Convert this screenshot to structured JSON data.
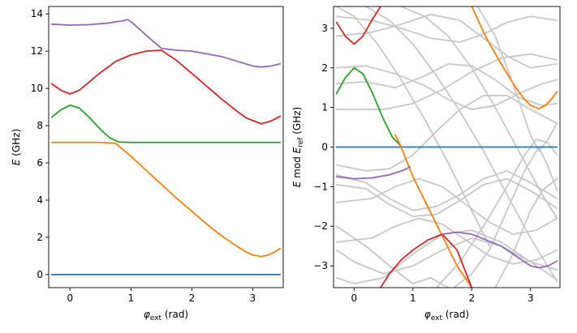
{
  "chart_data": [
    {
      "type": "line",
      "title": "",
      "xlabel_symbol": "φ",
      "xlabel_sub": "ext",
      "xlabel_unit": "(rad)",
      "ylabel_symbol": "E",
      "ylabel_unit": "(GHz)",
      "xlim": [
        -0.35,
        3.5
      ],
      "ylim": [
        -0.7,
        14.4
      ],
      "xticks": [
        0,
        1,
        2,
        3
      ],
      "yticks": [
        0,
        2,
        4,
        6,
        8,
        10,
        12,
        14
      ],
      "grid": false,
      "series": [
        {
          "color": "#1f77b4",
          "x": [
            -0.3,
            3.45
          ],
          "y": [
            0.0,
            0.0
          ]
        },
        {
          "color": "#ff7f0e",
          "x": [
            -0.3,
            0.0,
            0.5,
            0.75,
            1.0,
            1.25,
            1.5,
            1.75,
            2.0,
            2.25,
            2.5,
            2.75,
            2.9,
            3.0,
            3.14,
            3.25,
            3.35,
            3.45
          ],
          "y": [
            7.1,
            7.1,
            7.1,
            7.05,
            6.35,
            5.6,
            4.85,
            4.1,
            3.4,
            2.7,
            2.05,
            1.5,
            1.2,
            1.05,
            0.97,
            1.05,
            1.2,
            1.4
          ]
        },
        {
          "color": "#2ca02c",
          "x": [
            -0.3,
            -0.15,
            0.0,
            0.15,
            0.3,
            0.5,
            0.65,
            0.8,
            1.0,
            1.5,
            2.0,
            2.5,
            3.0,
            3.45
          ],
          "y": [
            8.45,
            8.85,
            9.1,
            8.95,
            8.5,
            7.8,
            7.35,
            7.12,
            7.1,
            7.1,
            7.1,
            7.1,
            7.1,
            7.1
          ]
        },
        {
          "color": "#d62728",
          "x": [
            -0.3,
            -0.15,
            0.0,
            0.15,
            0.3,
            0.5,
            0.75,
            1.0,
            1.25,
            1.5,
            1.75,
            2.0,
            2.25,
            2.5,
            2.75,
            2.9,
            3.14,
            3.3,
            3.45
          ],
          "y": [
            10.25,
            9.9,
            9.7,
            9.9,
            10.3,
            10.85,
            11.45,
            11.8,
            12.0,
            12.05,
            11.5,
            10.8,
            10.1,
            9.4,
            8.75,
            8.4,
            8.1,
            8.25,
            8.5
          ]
        },
        {
          "color": "#9467bd",
          "x": [
            -0.3,
            0.0,
            0.3,
            0.6,
            0.85,
            0.95,
            1.05,
            1.25,
            1.5,
            1.75,
            2.0,
            2.5,
            3.0,
            3.14,
            3.3,
            3.45
          ],
          "y": [
            13.45,
            13.4,
            13.42,
            13.5,
            13.62,
            13.7,
            13.45,
            12.85,
            12.15,
            12.05,
            12.0,
            11.7,
            11.2,
            11.15,
            11.2,
            11.32
          ]
        }
      ]
    },
    {
      "type": "line",
      "title": "",
      "xlabel_symbol": "φ",
      "xlabel_sub": "ext",
      "xlabel_unit": "(rad)",
      "ylabel_prefix": "E",
      "ylabel_mod": "mod",
      "ylabel_symbol": "E",
      "ylabel_sub": "ref",
      "ylabel_unit": "(GHz)",
      "xlim": [
        -0.35,
        3.5
      ],
      "ylim": [
        -3.55,
        3.55
      ],
      "xticks": [
        0,
        1,
        2,
        3
      ],
      "yticks": [
        -3,
        -2,
        -1,
        0,
        1,
        2,
        3
      ],
      "yticklabels": [
        "−3",
        "−2",
        "−1",
        "0",
        "1",
        "2",
        "3"
      ],
      "grid": false,
      "background_lines_color": "#c8c8c8",
      "background_lines": [
        {
          "x": [
            -0.3,
            0.2,
            0.6,
            1.0,
            1.4,
            1.8,
            2.2,
            2.6,
            3.0,
            3.45
          ],
          "y": [
            -0.7,
            -0.9,
            -1.3,
            -1.6,
            -1.5,
            -1.2,
            -0.8,
            -0.6,
            -0.9,
            -1.3
          ]
        },
        {
          "x": [
            -0.3,
            0.2,
            0.6,
            1.0,
            1.4,
            1.8,
            2.2,
            2.6,
            3.0,
            3.45
          ],
          "y": [
            -0.95,
            -1.05,
            -1.45,
            -1.75,
            -1.7,
            -1.35,
            -0.95,
            -0.8,
            -1.1,
            -1.55
          ]
        },
        {
          "x": [
            -0.3,
            0.3,
            0.7,
            1.1,
            1.5,
            1.9,
            2.3,
            2.7,
            3.1,
            3.45
          ],
          "y": [
            -1.4,
            -1.3,
            -1.0,
            -0.8,
            -1.0,
            -1.45,
            -1.9,
            -2.2,
            -2.1,
            -1.8
          ]
        },
        {
          "x": [
            -0.3,
            0.3,
            0.7,
            1.1,
            1.5,
            1.9,
            2.3,
            2.7,
            3.1,
            3.45
          ],
          "y": [
            -2.4,
            -2.3,
            -2.0,
            -1.8,
            -1.95,
            -2.35,
            -2.75,
            -2.95,
            -2.85,
            -2.6
          ]
        },
        {
          "x": [
            -0.3,
            0.0,
            0.5,
            1.0,
            1.5,
            2.0,
            2.5,
            3.0,
            3.45
          ],
          "y": [
            -2.6,
            -2.9,
            -3.2,
            -3.0,
            -2.6,
            -2.3,
            -2.5,
            -2.9,
            -3.1
          ]
        },
        {
          "x": [
            -0.3,
            0.0,
            0.5,
            1.0,
            1.5,
            2.0,
            2.5,
            3.0,
            3.45
          ],
          "y": [
            -3.3,
            -3.45,
            -3.3,
            -2.7,
            -2.2,
            -2.1,
            -2.4,
            -2.9,
            -3.35
          ]
        },
        {
          "x": [
            -0.3,
            0.2,
            0.7,
            1.2,
            1.6,
            2.0,
            2.4,
            2.8,
            3.2,
            3.45
          ],
          "y": [
            2.0,
            2.05,
            1.85,
            1.55,
            1.2,
            0.95,
            1.05,
            1.35,
            1.6,
            1.7
          ]
        },
        {
          "x": [
            -0.3,
            0.2,
            0.7,
            1.2,
            1.6,
            2.0,
            2.4,
            2.8,
            3.2,
            3.45
          ],
          "y": [
            1.6,
            1.65,
            1.5,
            1.8,
            2.1,
            2.05,
            1.7,
            1.25,
            1.05,
            1.1
          ]
        },
        {
          "x": [
            -0.3,
            0.3,
            0.8,
            1.3,
            1.8,
            2.2,
            2.6,
            3.0,
            3.45
          ],
          "y": [
            2.8,
            2.9,
            3.1,
            3.35,
            3.2,
            2.75,
            2.3,
            2.0,
            2.1
          ]
        },
        {
          "x": [
            -0.3,
            0.3,
            0.8,
            1.3,
            1.8,
            2.2,
            2.6,
            3.0,
            3.45
          ],
          "y": [
            3.3,
            3.2,
            3.0,
            2.75,
            2.65,
            2.85,
            3.15,
            3.3,
            3.2
          ]
        },
        {
          "x": [
            -0.3,
            0.5,
            1.0,
            1.5,
            2.0,
            2.5,
            3.0,
            3.45
          ],
          "y": [
            0.95,
            0.95,
            1.1,
            1.45,
            1.9,
            2.25,
            2.35,
            2.2
          ]
        },
        {
          "x": [
            -0.3,
            0.2,
            0.6,
            1.0,
            1.4,
            1.8,
            2.2,
            2.6,
            3.0,
            3.45
          ],
          "y": [
            -0.45,
            -0.6,
            -0.55,
            -0.2,
            0.4,
            0.95,
            1.3,
            1.3,
            0.95,
            0.6
          ]
        },
        {
          "x": [
            -0.3,
            0.0,
            0.4,
            0.8,
            1.2,
            1.6,
            2.0,
            2.3
          ],
          "y": [
            3.55,
            3.3,
            2.6,
            1.7,
            0.7,
            -0.4,
            -1.6,
            -2.5
          ]
        },
        {
          "x": [
            0.2,
            0.6,
            1.0,
            1.4,
            1.8,
            2.2,
            2.6,
            3.0,
            3.45
          ],
          "y": [
            3.55,
            3.2,
            2.6,
            1.8,
            0.9,
            -0.1,
            -1.2,
            -2.3,
            -3.4
          ]
        },
        {
          "x": [
            0.8,
            1.2,
            1.6,
            2.0,
            2.4,
            2.8,
            3.2,
            3.45
          ],
          "y": [
            3.55,
            3.3,
            2.8,
            2.0,
            1.0,
            -0.1,
            -1.2,
            -1.8
          ]
        },
        {
          "x": [
            1.4,
            1.8,
            2.2,
            2.6,
            2.9,
            3.1,
            3.3,
            3.45
          ],
          "y": [
            -3.55,
            -2.9,
            -2.0,
            -1.0,
            -0.2,
            0.2,
            0.1,
            -0.2
          ]
        },
        {
          "x": [
            2.1,
            2.4,
            2.7,
            3.0,
            3.14,
            3.3,
            3.45
          ],
          "y": [
            3.55,
            2.8,
            1.6,
            0.3,
            -0.1,
            0.2,
            0.6
          ]
        },
        {
          "x": [
            1.7,
            2.0,
            2.3,
            2.6,
            2.9,
            3.14,
            3.3,
            3.45
          ],
          "y": [
            -3.55,
            -3.2,
            -2.6,
            -1.6,
            -0.6,
            0.0,
            -0.5,
            -1.1
          ]
        },
        {
          "x": [
            -0.3,
            0.2,
            0.6,
            1.0,
            1.3,
            1.6
          ],
          "y": [
            -2.0,
            -2.5,
            -3.0,
            -3.45,
            -3.3,
            -3.55
          ]
        },
        {
          "x": [
            2.4,
            2.7,
            3.0,
            3.2,
            3.45
          ],
          "y": [
            -3.55,
            -2.7,
            -1.6,
            -1.1,
            -0.8
          ]
        }
      ],
      "series": [
        {
          "color": "#1f77b4",
          "x": [
            -0.3,
            3.45
          ],
          "y": [
            0.0,
            0.0
          ]
        },
        {
          "color": "#2ca02c",
          "x": [
            -0.3,
            -0.15,
            0.0,
            0.15,
            0.3,
            0.5,
            0.65,
            0.8
          ],
          "y": [
            1.35,
            1.75,
            2.0,
            1.85,
            1.4,
            0.7,
            0.25,
            0.02
          ]
        },
        {
          "color": "#ff7f0e",
          "x": [
            0.7,
            0.8,
            1.0,
            1.25,
            1.5,
            1.75,
            2.0
          ],
          "y": [
            0.3,
            0.0,
            -0.75,
            -1.5,
            -2.25,
            -3.0,
            -3.55
          ]
        },
        {
          "color": "#ff7f0e",
          "x": [
            2.0,
            2.25,
            2.5,
            2.75,
            2.9,
            3.0,
            3.14,
            3.25,
            3.35,
            3.45
          ],
          "y": [
            3.55,
            2.75,
            2.1,
            1.5,
            1.2,
            1.05,
            0.97,
            1.05,
            1.2,
            1.4
          ]
        },
        {
          "color": "#d62728",
          "x": [
            -0.3,
            -0.15,
            0.0,
            0.15,
            0.3,
            0.45
          ],
          "y": [
            3.15,
            2.8,
            2.6,
            2.8,
            3.2,
            3.55
          ]
        },
        {
          "color": "#d62728",
          "x": [
            0.45,
            0.6,
            0.8,
            1.0,
            1.25,
            1.5,
            1.75,
            2.0
          ],
          "y": [
            -3.55,
            -3.2,
            -2.85,
            -2.6,
            -2.35,
            -2.2,
            -2.6,
            -3.55
          ]
        },
        {
          "color": "#9467bd",
          "x": [
            -0.3,
            0.0,
            0.3,
            0.6,
            0.85,
            0.95
          ],
          "y": [
            -0.75,
            -0.8,
            -0.78,
            -0.7,
            -0.58,
            -0.5
          ]
        },
        {
          "color": "#9467bd",
          "x": [
            1.5,
            1.75,
            2.0,
            2.5,
            3.0,
            3.14,
            3.3,
            3.45
          ],
          "y": [
            -2.2,
            -2.15,
            -2.2,
            -2.5,
            -3.0,
            -3.05,
            -3.0,
            -2.88
          ]
        }
      ]
    }
  ]
}
